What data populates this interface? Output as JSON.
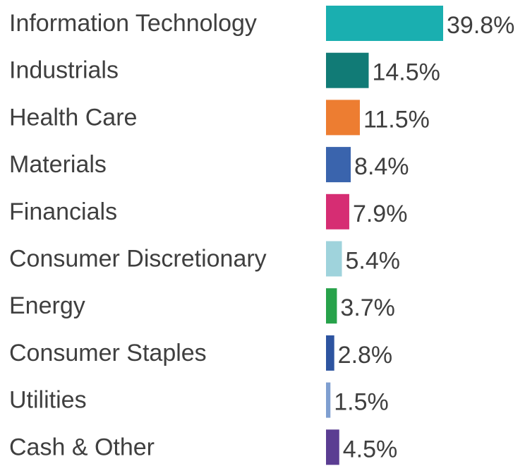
{
  "chart_data": {
    "type": "bar",
    "orientation": "horizontal",
    "title": "",
    "xlabel": "",
    "ylabel": "",
    "grid": false,
    "categories": [
      "Information Technology",
      "Industrials",
      "Health Care",
      "Materials",
      "Financials",
      "Consumer Discretionary",
      "Energy",
      "Consumer Staples",
      "Utilities",
      "Cash & Other"
    ],
    "values": [
      39.8,
      14.5,
      11.5,
      8.4,
      7.9,
      5.4,
      3.7,
      2.8,
      1.5,
      4.5
    ],
    "value_labels": [
      "39.8%",
      "14.5%",
      "11.5%",
      "8.4%",
      "7.9%",
      "5.4%",
      "3.7%",
      "2.8%",
      "1.5%",
      "4.5%"
    ],
    "colors": [
      "#1aafb0",
      "#117b76",
      "#ed7d31",
      "#3a64ad",
      "#d62d73",
      "#9fd3dc",
      "#27a24a",
      "#2d54a0",
      "#7f9fd0",
      "#5b3d92"
    ]
  }
}
